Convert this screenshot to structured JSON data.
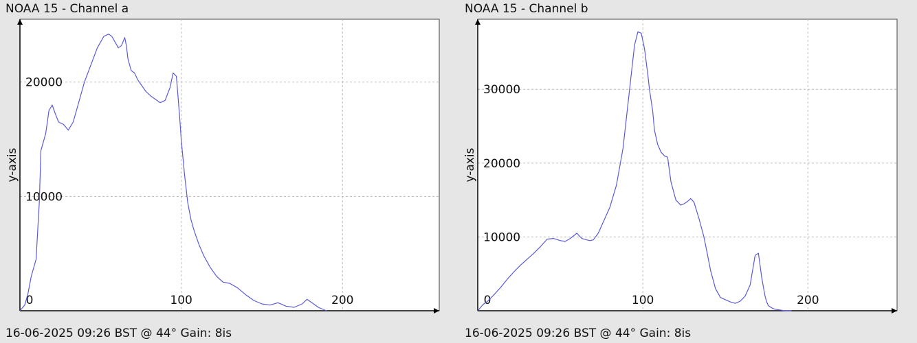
{
  "chart_data": [
    {
      "type": "line",
      "title": "NOAA 15 - Channel a",
      "footer": "16-06-2025 09:26 BST @ 44° Gain: 8is",
      "xlabel": "",
      "ylabel": "y-axis",
      "xlim": [
        0,
        260
      ],
      "ylim": [
        0,
        25500
      ],
      "xticks": [
        0,
        100,
        200
      ],
      "yticks": [
        10000,
        20000
      ],
      "grid": true,
      "line_color": "#5a5ad8",
      "series": [
        {
          "x": [
            0,
            3,
            5,
            7,
            10,
            12,
            13,
            14,
            16,
            18,
            20,
            22,
            24,
            27,
            30,
            33,
            36,
            40,
            44,
            48,
            52,
            55,
            57,
            59,
            61,
            63,
            65,
            66,
            67,
            69,
            71,
            73,
            75,
            78,
            81,
            84,
            87,
            90,
            93,
            95,
            97,
            99,
            100,
            102,
            104,
            106,
            108,
            111,
            114,
            118,
            122,
            126,
            130,
            135,
            140,
            145,
            150,
            155,
            160,
            165,
            170,
            175,
            178,
            181,
            185,
            190
          ],
          "y": [
            0,
            500,
            1500,
            3000,
            4500,
            9500,
            14000,
            14500,
            15500,
            17500,
            18000,
            17200,
            16500,
            16300,
            15800,
            16500,
            18000,
            20000,
            21500,
            23000,
            24000,
            24200,
            24000,
            23500,
            23000,
            23200,
            23900,
            23200,
            22000,
            21000,
            20800,
            20200,
            19800,
            19200,
            18800,
            18500,
            18200,
            18400,
            19500,
            20800,
            20500,
            17000,
            15000,
            12000,
            9500,
            8000,
            7000,
            5800,
            4800,
            3800,
            3000,
            2500,
            2400,
            2000,
            1400,
            900,
            600,
            500,
            700,
            400,
            300,
            600,
            1000,
            700,
            300,
            0
          ]
        }
      ]
    },
    {
      "type": "line",
      "title": "NOAA 15 - Channel b",
      "footer": "16-06-2025 09:26 BST @ 44° Gain: 8is",
      "xlabel": "",
      "ylabel": "y-axis",
      "xlim": [
        0,
        254
      ],
      "ylim": [
        0,
        39500
      ],
      "xticks": [
        0,
        100,
        200
      ],
      "yticks": [
        10000,
        20000,
        30000
      ],
      "grid": true,
      "line_color": "#5a5ad8",
      "series": [
        {
          "x": [
            0,
            3,
            6,
            10,
            14,
            18,
            22,
            26,
            30,
            34,
            38,
            42,
            46,
            50,
            53,
            56,
            60,
            63,
            66,
            68,
            70,
            73,
            76,
            80,
            84,
            88,
            92,
            95,
            97,
            99,
            101,
            103,
            104,
            106,
            107,
            109,
            111,
            113,
            115,
            117,
            120,
            123,
            125,
            127,
            129,
            131,
            134,
            137,
            139,
            141,
            144,
            147,
            150,
            153,
            156,
            159,
            162,
            165,
            168,
            170,
            172,
            174,
            175,
            176,
            178,
            180,
            183,
            186,
            190
          ],
          "y": [
            0,
            800,
            1300,
            2200,
            3200,
            4300,
            5300,
            6200,
            7000,
            7800,
            8700,
            9700,
            9800,
            9500,
            9400,
            9800,
            10500,
            9800,
            9600,
            9500,
            9600,
            10500,
            12000,
            14000,
            17000,
            22000,
            30000,
            36000,
            37800,
            37600,
            35500,
            32000,
            30000,
            27000,
            24500,
            22500,
            21500,
            21000,
            20800,
            17500,
            15000,
            14300,
            14500,
            14800,
            15200,
            14700,
            12500,
            10000,
            7800,
            5500,
            3000,
            1800,
            1500,
            1200,
            1000,
            1300,
            2000,
            3500,
            7500,
            7800,
            4500,
            2000,
            1200,
            700,
            400,
            200,
            100,
            0,
            0
          ]
        }
      ]
    }
  ]
}
